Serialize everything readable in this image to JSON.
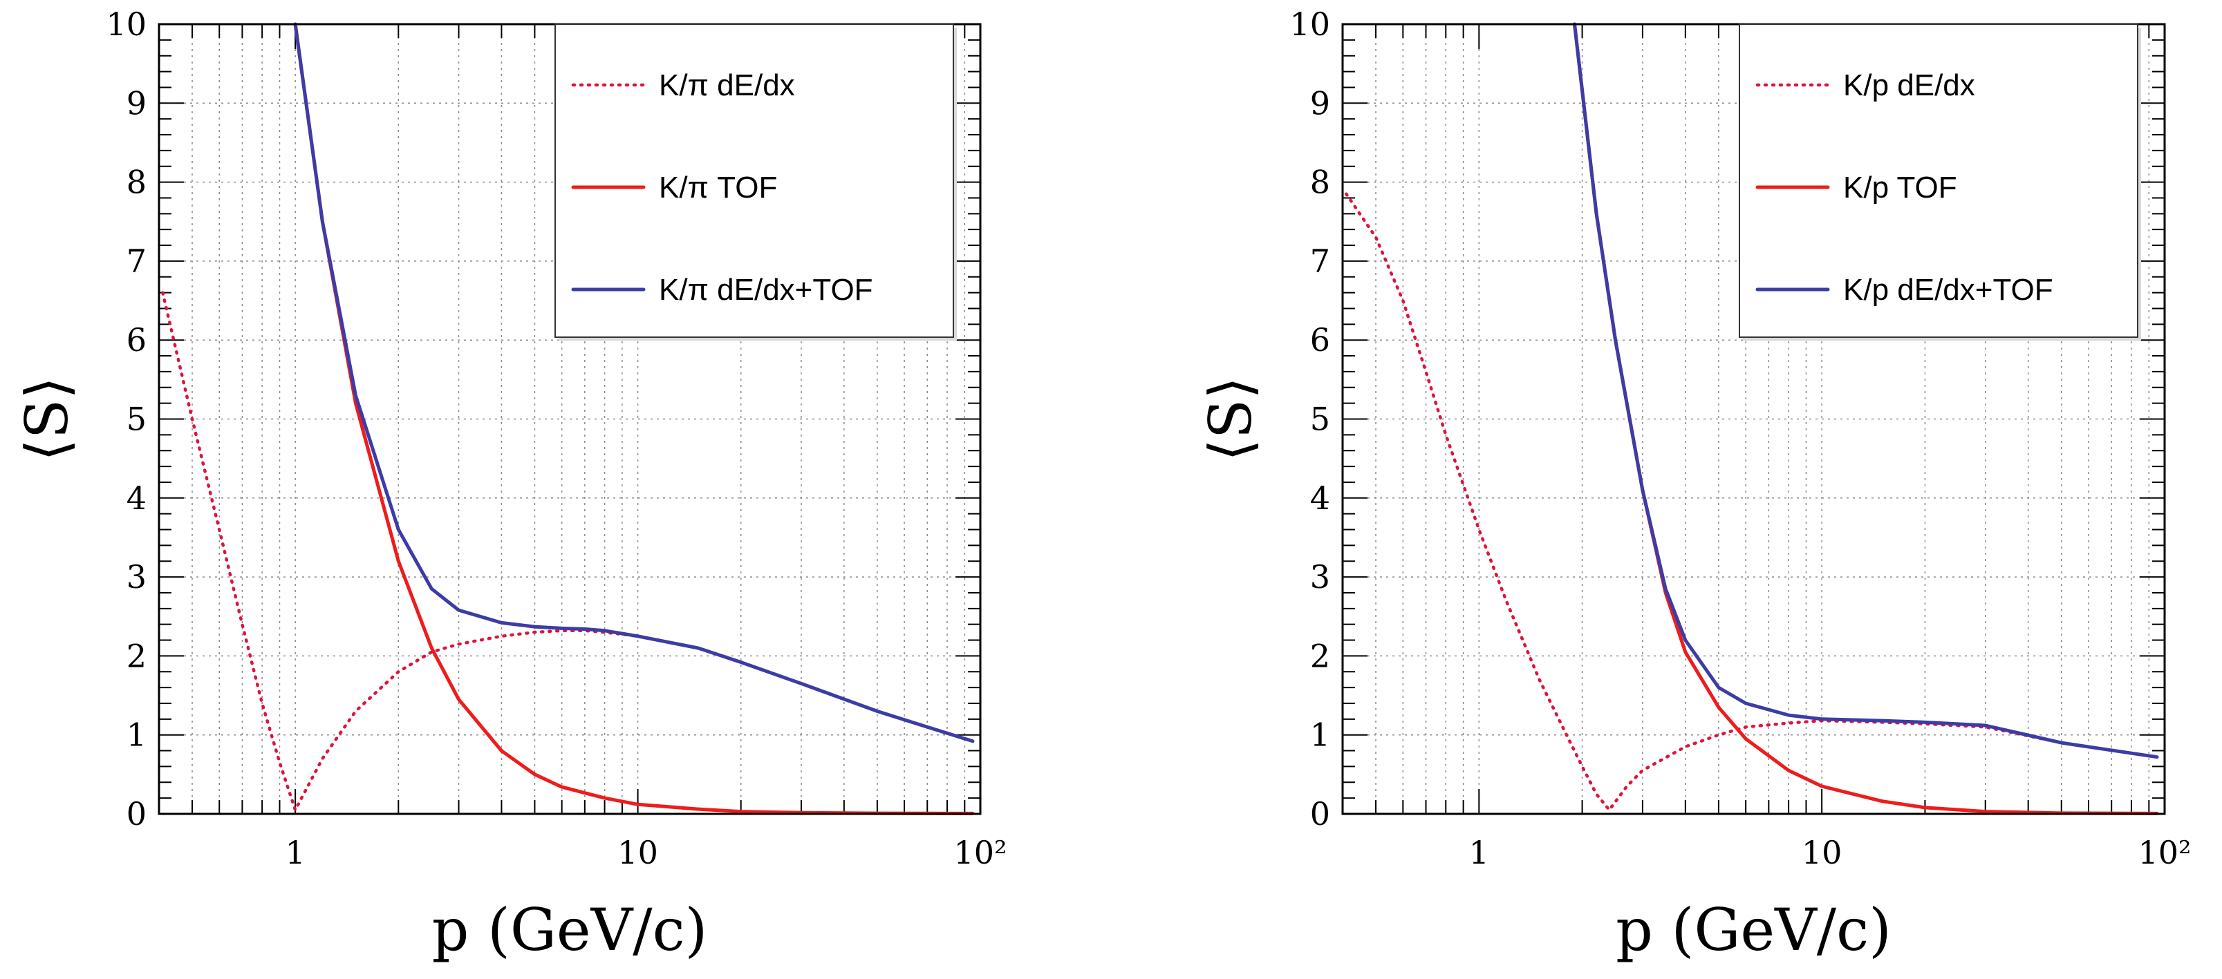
{
  "chart_data": [
    {
      "type": "line",
      "title": "",
      "xlabel": "p (GeV/c)",
      "ylabel": "⟨S⟩",
      "xscale": "log",
      "xlim": [
        0.4,
        100
      ],
      "ylim": [
        0,
        10
      ],
      "grid": true,
      "legend_position": "top-right",
      "x_tick_labels": [
        {
          "value": 1,
          "label": "1"
        },
        {
          "value": 10,
          "label": "10"
        },
        {
          "value": 100,
          "label": "10²"
        }
      ],
      "y_tick_labels": [
        "0",
        "1",
        "2",
        "3",
        "4",
        "5",
        "6",
        "7",
        "8",
        "9",
        "10"
      ],
      "series": [
        {
          "name": "K/π dE/dx",
          "color": "#dc143c",
          "style": "dotted",
          "points": [
            [
              0.41,
              6.6
            ],
            [
              0.5,
              5.0
            ],
            [
              0.6,
              3.6
            ],
            [
              0.7,
              2.4
            ],
            [
              0.8,
              1.4
            ],
            [
              0.9,
              0.65
            ],
            [
              1.0,
              0.05
            ],
            [
              1.2,
              0.7
            ],
            [
              1.5,
              1.3
            ],
            [
              2.0,
              1.8
            ],
            [
              2.5,
              2.05
            ],
            [
              3.0,
              2.15
            ],
            [
              4.0,
              2.25
            ],
            [
              5.0,
              2.3
            ],
            [
              6.0,
              2.32
            ],
            [
              7.0,
              2.32
            ],
            [
              8.0,
              2.3
            ],
            [
              10.0,
              2.25
            ],
            [
              15.0,
              2.1
            ],
            [
              20.0,
              1.92
            ],
            [
              30.0,
              1.65
            ],
            [
              50.0,
              1.3
            ],
            [
              70.0,
              1.1
            ],
            [
              95.0,
              0.92
            ]
          ]
        },
        {
          "name": "K/π TOF",
          "color": "#ee1c1c",
          "style": "solid",
          "points": [
            [
              1.0,
              10.0
            ],
            [
              1.2,
              7.5
            ],
            [
              1.5,
              5.2
            ],
            [
              2.0,
              3.2
            ],
            [
              2.5,
              2.1
            ],
            [
              3.0,
              1.45
            ],
            [
              4.0,
              0.8
            ],
            [
              5.0,
              0.5
            ],
            [
              6.0,
              0.34
            ],
            [
              8.0,
              0.2
            ],
            [
              10.0,
              0.12
            ],
            [
              15.0,
              0.06
            ],
            [
              20.0,
              0.03
            ],
            [
              30.0,
              0.015
            ],
            [
              50.0,
              0.008
            ],
            [
              95.0,
              0.005
            ]
          ]
        },
        {
          "name": "K/π dE/dx+TOF",
          "color": "#3c3ca6",
          "style": "solid",
          "points": [
            [
              1.0,
              10.0
            ],
            [
              1.2,
              7.5
            ],
            [
              1.5,
              5.3
            ],
            [
              2.0,
              3.6
            ],
            [
              2.5,
              2.85
            ],
            [
              3.0,
              2.58
            ],
            [
              4.0,
              2.42
            ],
            [
              5.0,
              2.37
            ],
            [
              6.0,
              2.35
            ],
            [
              7.0,
              2.34
            ],
            [
              8.0,
              2.32
            ],
            [
              10.0,
              2.25
            ],
            [
              15.0,
              2.1
            ],
            [
              20.0,
              1.92
            ],
            [
              30.0,
              1.65
            ],
            [
              50.0,
              1.3
            ],
            [
              70.0,
              1.1
            ],
            [
              95.0,
              0.92
            ]
          ]
        }
      ]
    },
    {
      "type": "line",
      "title": "",
      "xlabel": "p (GeV/c)",
      "ylabel": "⟨S⟩",
      "xscale": "log",
      "xlim": [
        0.4,
        100
      ],
      "ylim": [
        0,
        10
      ],
      "grid": true,
      "legend_position": "top-right",
      "x_tick_labels": [
        {
          "value": 1,
          "label": "1"
        },
        {
          "value": 10,
          "label": "10"
        },
        {
          "value": 100,
          "label": "10²"
        }
      ],
      "y_tick_labels": [
        "0",
        "1",
        "2",
        "3",
        "4",
        "5",
        "6",
        "7",
        "8",
        "9",
        "10"
      ],
      "series": [
        {
          "name": "K/p dE/dx",
          "color": "#dc143c",
          "style": "dotted",
          "points": [
            [
              0.41,
              7.85
            ],
            [
              0.5,
              7.3
            ],
            [
              0.6,
              6.5
            ],
            [
              0.7,
              5.6
            ],
            [
              0.8,
              4.8
            ],
            [
              1.0,
              3.6
            ],
            [
              1.2,
              2.7
            ],
            [
              1.5,
              1.7
            ],
            [
              1.8,
              1.0
            ],
            [
              2.0,
              0.6
            ],
            [
              2.2,
              0.25
            ],
            [
              2.4,
              0.05
            ],
            [
              2.7,
              0.35
            ],
            [
              3.0,
              0.55
            ],
            [
              4.0,
              0.85
            ],
            [
              5.0,
              1.0
            ],
            [
              6.0,
              1.1
            ],
            [
              8.0,
              1.15
            ],
            [
              10.0,
              1.18
            ],
            [
              15.0,
              1.16
            ],
            [
              20.0,
              1.14
            ],
            [
              30.0,
              1.1
            ],
            [
              50.0,
              0.9
            ],
            [
              95.0,
              0.72
            ]
          ]
        },
        {
          "name": "K/p TOF",
          "color": "#ee1c1c",
          "style": "solid",
          "points": [
            [
              1.9,
              10.0
            ],
            [
              2.2,
              7.6
            ],
            [
              2.5,
              6.0
            ],
            [
              3.0,
              4.1
            ],
            [
              3.5,
              2.8
            ],
            [
              4.0,
              2.05
            ],
            [
              5.0,
              1.35
            ],
            [
              6.0,
              0.95
            ],
            [
              8.0,
              0.55
            ],
            [
              10.0,
              0.35
            ],
            [
              15.0,
              0.16
            ],
            [
              20.0,
              0.08
            ],
            [
              30.0,
              0.03
            ],
            [
              50.0,
              0.01
            ],
            [
              95.0,
              0.005
            ]
          ]
        },
        {
          "name": "K/p dE/dx+TOF",
          "color": "#3c3ca6",
          "style": "solid",
          "points": [
            [
              1.9,
              10.0
            ],
            [
              2.2,
              7.6
            ],
            [
              2.5,
              6.0
            ],
            [
              3.0,
              4.1
            ],
            [
              3.5,
              2.85
            ],
            [
              4.0,
              2.2
            ],
            [
              5.0,
              1.6
            ],
            [
              6.0,
              1.4
            ],
            [
              8.0,
              1.25
            ],
            [
              10.0,
              1.2
            ],
            [
              15.0,
              1.18
            ],
            [
              20.0,
              1.16
            ],
            [
              30.0,
              1.12
            ],
            [
              50.0,
              0.9
            ],
            [
              95.0,
              0.72
            ]
          ]
        }
      ]
    }
  ]
}
